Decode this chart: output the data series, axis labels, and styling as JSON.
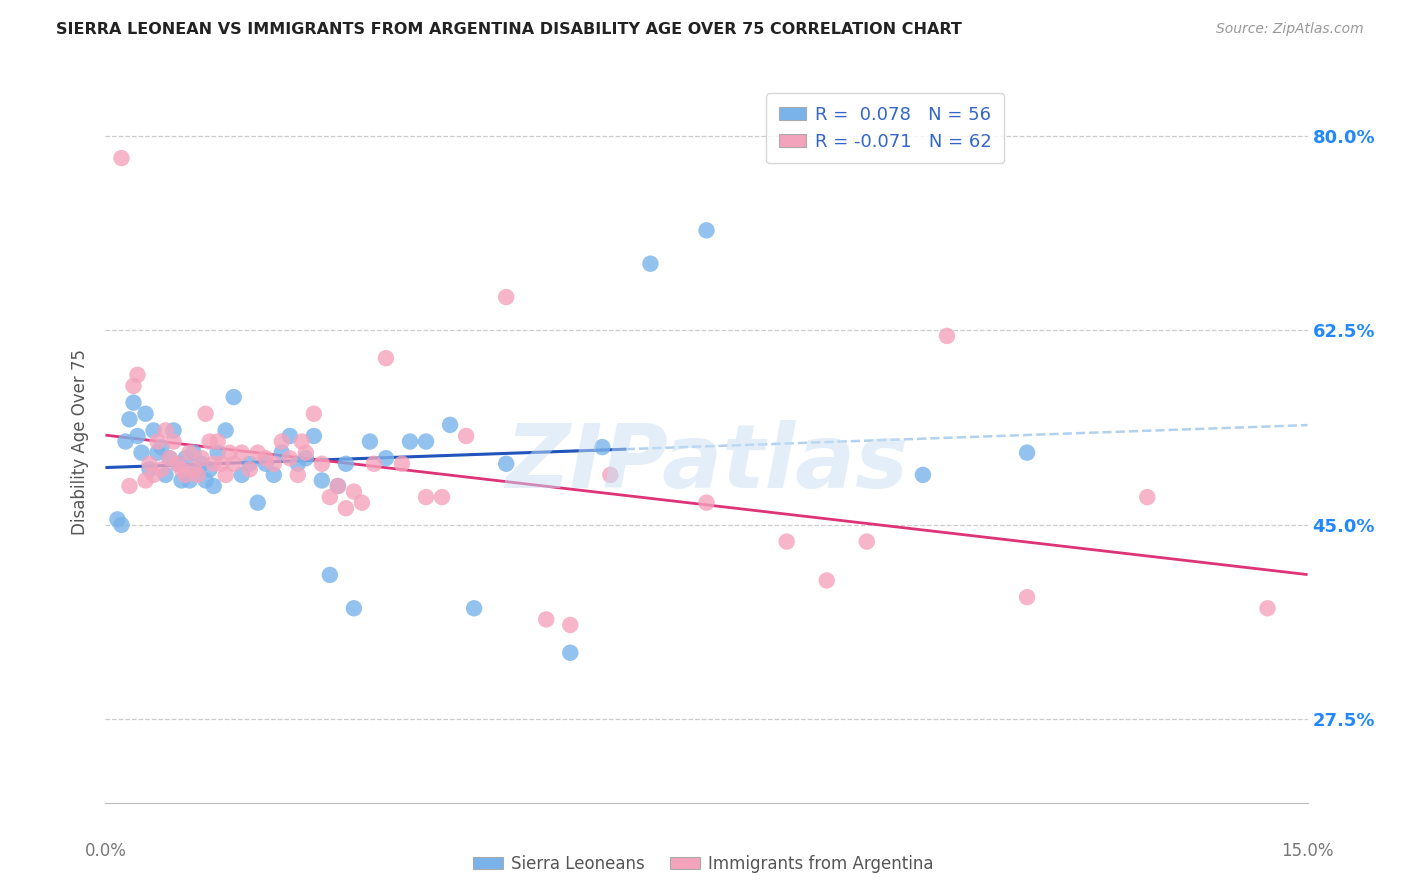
{
  "title": "SIERRA LEONEAN VS IMMIGRANTS FROM ARGENTINA DISABILITY AGE OVER 75 CORRELATION CHART",
  "source": "Source: ZipAtlas.com",
  "ylabel": "Disability Age Over 75",
  "xmin": 0.0,
  "xmax": 15.0,
  "ymin": 20.0,
  "ymax": 85.0,
  "yticks": [
    27.5,
    45.0,
    62.5,
    80.0
  ],
  "ytick_labels": [
    "27.5%",
    "45.0%",
    "62.5%",
    "80.0%"
  ],
  "legend_entry1": "R =  0.078   N = 56",
  "legend_entry2": "R = -0.071   N = 62",
  "series1_label": "Sierra Leoneans",
  "series2_label": "Immigrants from Argentina",
  "series1_color": "#7ab3ea",
  "series2_color": "#f4a3bc",
  "series1_line_color": "#2255bb",
  "series2_line_color": "#dd3377",
  "series1_dash_color": "#aaccee",
  "background_color": "#ffffff",
  "grid_color": "#cccccc",
  "watermark": "ZIPatlas",
  "series1_x": [
    0.15,
    0.2,
    0.25,
    0.3,
    0.35,
    0.4,
    0.45,
    0.5,
    0.55,
    0.6,
    0.65,
    0.7,
    0.75,
    0.8,
    0.85,
    0.9,
    0.95,
    1.0,
    1.05,
    1.1,
    1.15,
    1.2,
    1.25,
    1.3,
    1.35,
    1.4,
    1.5,
    1.6,
    1.7,
    1.8,
    1.9,
    2.0,
    2.1,
    2.2,
    2.3,
    2.4,
    2.5,
    2.6,
    2.7,
    2.8,
    2.9,
    3.0,
    3.1,
    3.3,
    3.5,
    3.8,
    4.0,
    4.3,
    4.6,
    5.0,
    5.8,
    6.2,
    6.8,
    7.5,
    10.2,
    11.5
  ],
  "series1_y": [
    45.5,
    45.0,
    52.5,
    54.5,
    56.0,
    53.0,
    51.5,
    55.0,
    50.0,
    53.5,
    51.5,
    52.0,
    49.5,
    51.0,
    53.5,
    50.5,
    49.0,
    51.0,
    49.0,
    51.5,
    50.0,
    50.5,
    49.0,
    50.0,
    48.5,
    51.5,
    53.5,
    56.5,
    49.5,
    50.5,
    47.0,
    50.5,
    49.5,
    51.5,
    53.0,
    50.5,
    51.0,
    53.0,
    49.0,
    40.5,
    48.5,
    50.5,
    37.5,
    52.5,
    51.0,
    52.5,
    52.5,
    54.0,
    37.5,
    50.5,
    33.5,
    52.0,
    68.5,
    71.5,
    49.5,
    51.5
  ],
  "series2_x": [
    0.2,
    0.3,
    0.35,
    0.4,
    0.5,
    0.55,
    0.6,
    0.65,
    0.7,
    0.75,
    0.8,
    0.85,
    0.9,
    0.95,
    1.0,
    1.05,
    1.1,
    1.15,
    1.2,
    1.25,
    1.3,
    1.35,
    1.4,
    1.45,
    1.5,
    1.55,
    1.6,
    1.7,
    1.8,
    1.9,
    2.0,
    2.1,
    2.2,
    2.3,
    2.4,
    2.45,
    2.5,
    2.6,
    2.7,
    2.8,
    2.9,
    3.0,
    3.1,
    3.2,
    3.35,
    3.5,
    3.7,
    4.0,
    4.2,
    4.5,
    5.0,
    5.5,
    5.8,
    6.3,
    7.5,
    8.5,
    9.0,
    9.5,
    10.5,
    11.5,
    13.0,
    14.5
  ],
  "series2_y": [
    78.0,
    48.5,
    57.5,
    58.5,
    49.0,
    50.5,
    49.5,
    52.5,
    50.0,
    53.5,
    51.0,
    52.5,
    50.5,
    50.0,
    49.5,
    51.5,
    50.0,
    49.5,
    51.0,
    55.0,
    52.5,
    50.5,
    52.5,
    50.5,
    49.5,
    51.5,
    50.5,
    51.5,
    50.0,
    51.5,
    51.0,
    50.5,
    52.5,
    51.0,
    49.5,
    52.5,
    51.5,
    55.0,
    50.5,
    47.5,
    48.5,
    46.5,
    48.0,
    47.0,
    50.5,
    60.0,
    50.5,
    47.5,
    47.5,
    53.0,
    65.5,
    36.5,
    36.0,
    49.5,
    47.0,
    43.5,
    40.0,
    43.5,
    62.0,
    38.5,
    47.5,
    37.5
  ]
}
